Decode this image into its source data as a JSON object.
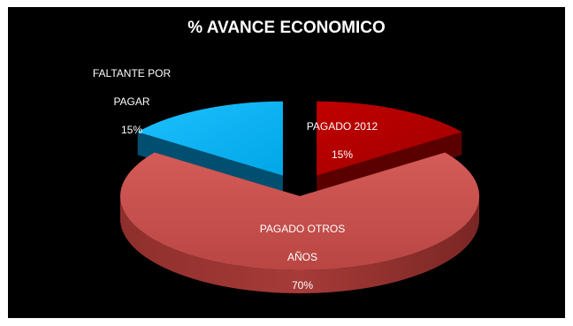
{
  "chart_data": {
    "type": "pie",
    "title": "% AVANCE ECONOMICO",
    "slices": [
      {
        "name": "PAGADO 2012",
        "value": 15,
        "label_line1": "PAGADO 2012",
        "label_line2": "15%",
        "color": "#c00000",
        "exploded": true
      },
      {
        "name": "PAGADO OTROS AÑOS",
        "value": 70,
        "label_line1": "PAGADO OTROS",
        "label_line2": "AÑOS",
        "label_line3": "70%",
        "color": "#c0504d",
        "exploded": false
      },
      {
        "name": "FALTANTE POR PAGAR",
        "value": 15,
        "label_line1": "FALTANTE POR",
        "label_line2": "PAGAR",
        "label_line3": "15%",
        "color": "#00b0f0",
        "exploded": true
      }
    ],
    "style": "3d-exploded",
    "legend": "none"
  }
}
